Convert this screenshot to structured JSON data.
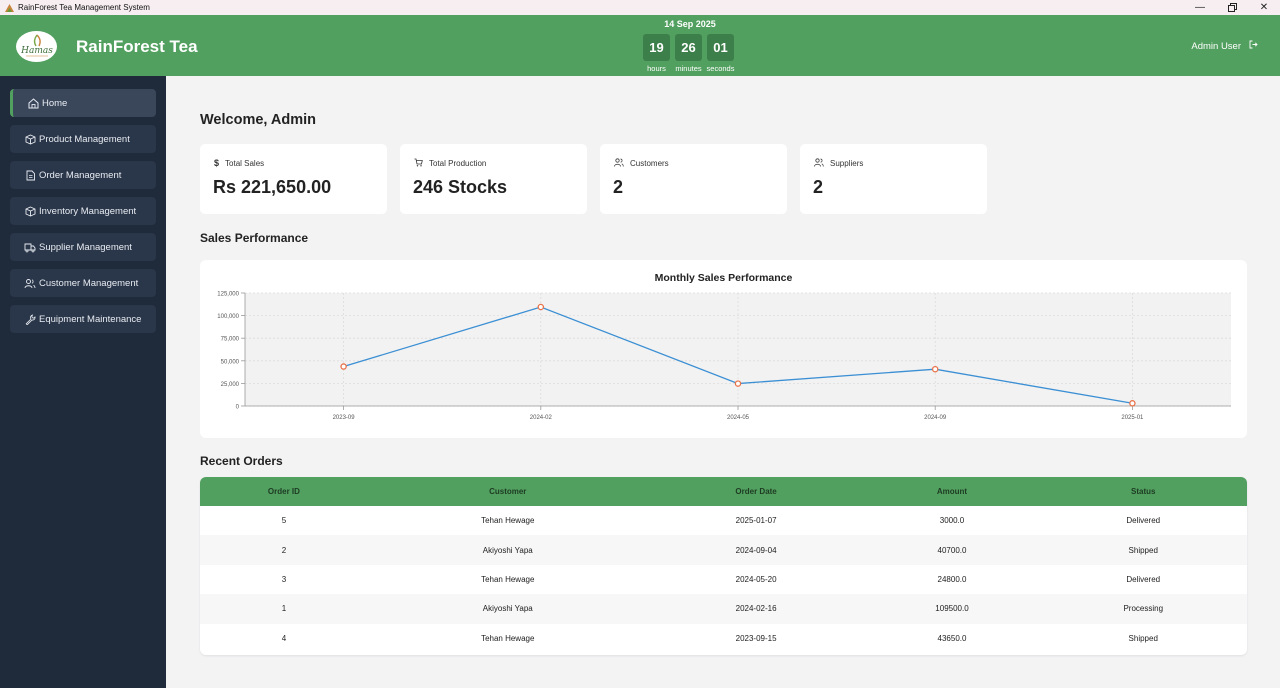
{
  "window": {
    "title": "RainForest Tea Management System"
  },
  "header": {
    "brand": "RainForest Tea",
    "logo_text": "Hamas",
    "date": "14 Sep 2025",
    "clock": [
      {
        "value": "19",
        "label": "hours"
      },
      {
        "value": "26",
        "label": "minutes"
      },
      {
        "value": "01",
        "label": "seconds"
      }
    ],
    "user": "Admin User"
  },
  "sidebar": {
    "items": [
      {
        "label": "Home",
        "icon": "home-icon"
      },
      {
        "label": "Product Management",
        "icon": "box-icon"
      },
      {
        "label": "Order Management",
        "icon": "document-icon"
      },
      {
        "label": "Inventory Management",
        "icon": "box-icon"
      },
      {
        "label": "Supplier Management",
        "icon": "truck-icon"
      },
      {
        "label": "Customer Management",
        "icon": "users-icon"
      },
      {
        "label": "Equipment Maintenance",
        "icon": "wrench-icon"
      }
    ]
  },
  "main": {
    "welcome": "Welcome, Admin",
    "stats": [
      {
        "label": "Total Sales",
        "value": "Rs 221,650.00",
        "icon": "dollar-icon"
      },
      {
        "label": "Total Production",
        "value": "246 Stocks",
        "icon": "cart-icon"
      },
      {
        "label": "Customers",
        "value": "2",
        "icon": "users-icon"
      },
      {
        "label": "Suppliers",
        "value": "2",
        "icon": "users-icon"
      }
    ],
    "sales_section_title": "Sales Performance",
    "orders_section_title": "Recent Orders"
  },
  "chart_data": {
    "type": "line",
    "title": "Monthly Sales Performance",
    "categories": [
      "2023-09",
      "2024-02",
      "2024-05",
      "2024-09",
      "2025-01"
    ],
    "values": [
      43650,
      109500,
      24800,
      40700,
      3000
    ],
    "ylim": [
      0,
      125000
    ],
    "yticks": [
      "0",
      "25,000",
      "50,000",
      "75,000",
      "100,000",
      "125,000"
    ],
    "grid": true,
    "line_color": "#3b8fd4",
    "point_color": "#e8734a"
  },
  "orders": {
    "columns": [
      "Order ID",
      "Customer",
      "Order Date",
      "Amount",
      "Status"
    ],
    "rows": [
      [
        "5",
        "Tehan Hewage",
        "2025-01-07",
        "3000.0",
        "Delivered"
      ],
      [
        "2",
        "Akiyoshi Yapa",
        "2024-09-04",
        "40700.0",
        "Shipped"
      ],
      [
        "3",
        "Tehan Hewage",
        "2024-05-20",
        "24800.0",
        "Delivered"
      ],
      [
        "1",
        "Akiyoshi Yapa",
        "2024-02-16",
        "109500.0",
        "Processing"
      ],
      [
        "4",
        "Tehan Hewage",
        "2023-09-15",
        "43650.0",
        "Shipped"
      ]
    ]
  },
  "colors": {
    "header": "#52a060",
    "sidebar": "#1f2a3b",
    "accent": "#52a060"
  }
}
